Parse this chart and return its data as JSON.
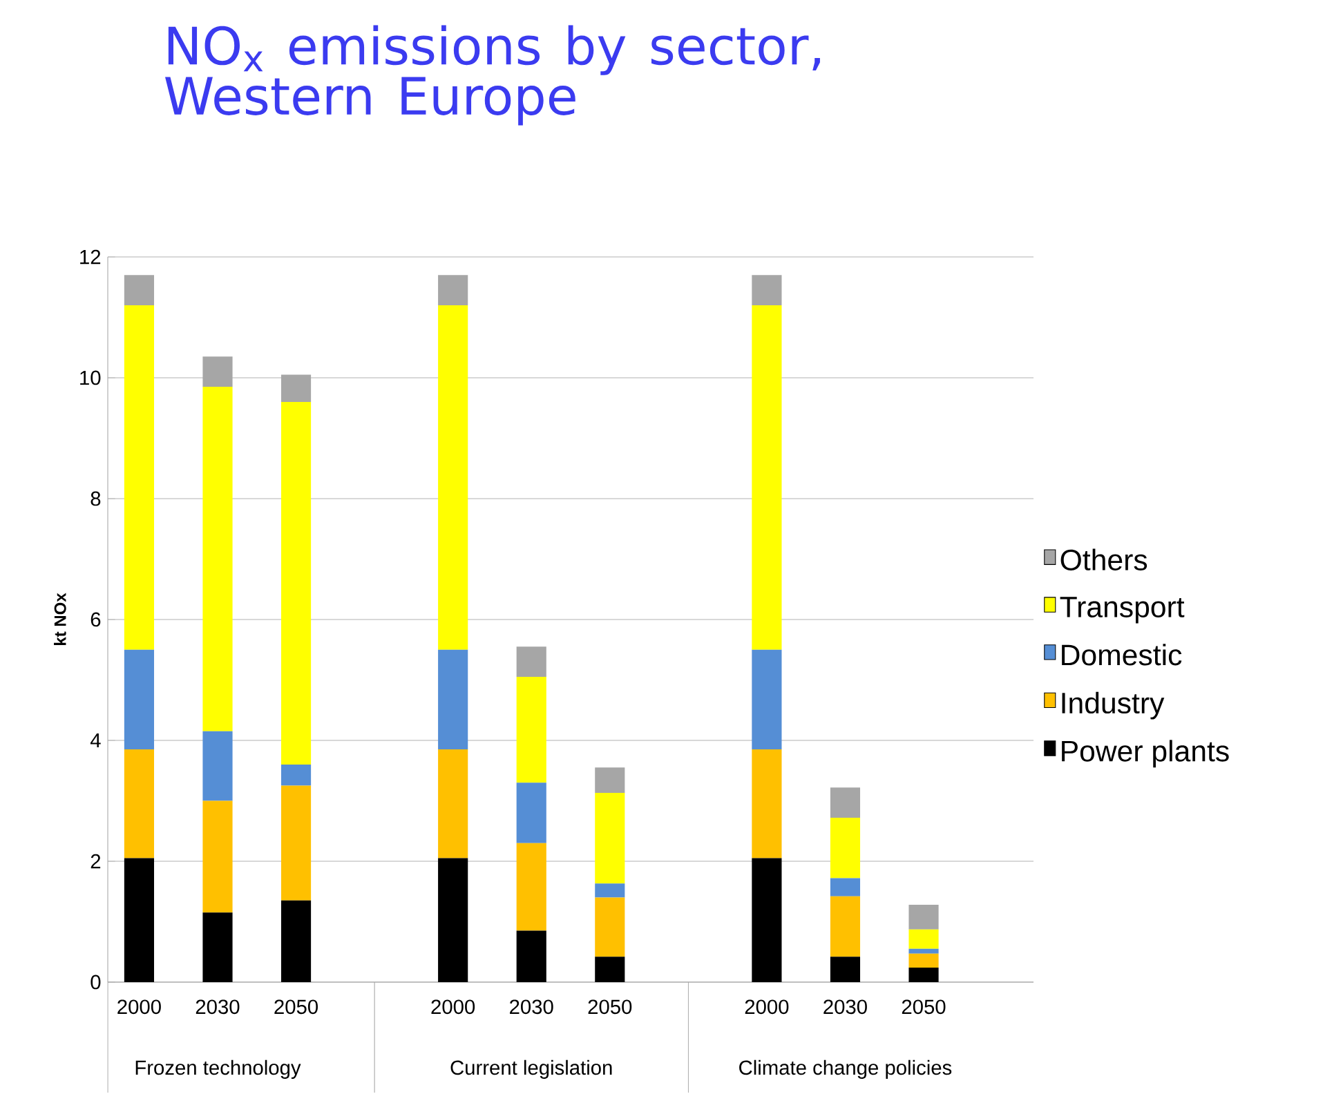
{
  "chart_data": {
    "type": "bar",
    "stacked": true,
    "title": "NO$_{x}$ emissions by sector, Western Europe",
    "ylabel": "kt NOx",
    "categories": [
      "2000",
      "2030",
      "2050",
      null,
      "2000",
      "2030",
      "2050",
      null,
      "2000",
      "2030",
      "2050",
      null
    ],
    "annotations": [
      "Frozen technology",
      "Current legislation",
      "Climate change policies"
    ],
    "series": [
      {
        "name": "Power plants",
        "color": "#000000",
        "values": [
          2.05,
          1.15,
          1.35,
          null,
          2.05,
          0.85,
          0.42,
          null,
          2.05,
          0.42,
          0.24,
          null
        ]
      },
      {
        "name": "Industry",
        "color": "#ffc000",
        "values": [
          1.8,
          1.85,
          1.9,
          null,
          1.8,
          1.45,
          0.98,
          null,
          1.8,
          1.0,
          0.23,
          null
        ]
      },
      {
        "name": "Domestic",
        "color": "#558ed5",
        "values": [
          1.65,
          1.15,
          0.35,
          null,
          1.65,
          1.0,
          0.23,
          null,
          1.65,
          0.3,
          0.08,
          null
        ]
      },
      {
        "name": "Transport",
        "color": "#ffff00",
        "values": [
          5.7,
          5.7,
          6.0,
          null,
          5.7,
          1.75,
          1.5,
          null,
          5.7,
          1.0,
          0.32,
          null
        ]
      },
      {
        "name": "Others",
        "color": "#a6a6a6",
        "values": [
          0.5,
          0.5,
          0.45,
          null,
          0.5,
          0.5,
          0.42,
          null,
          0.5,
          0.5,
          0.41,
          null
        ]
      }
    ],
    "ylim": [
      0,
      12
    ],
    "yticks": [
      0,
      2,
      4,
      6,
      8,
      10,
      12
    ],
    "grid": "y",
    "legend": "right"
  }
}
